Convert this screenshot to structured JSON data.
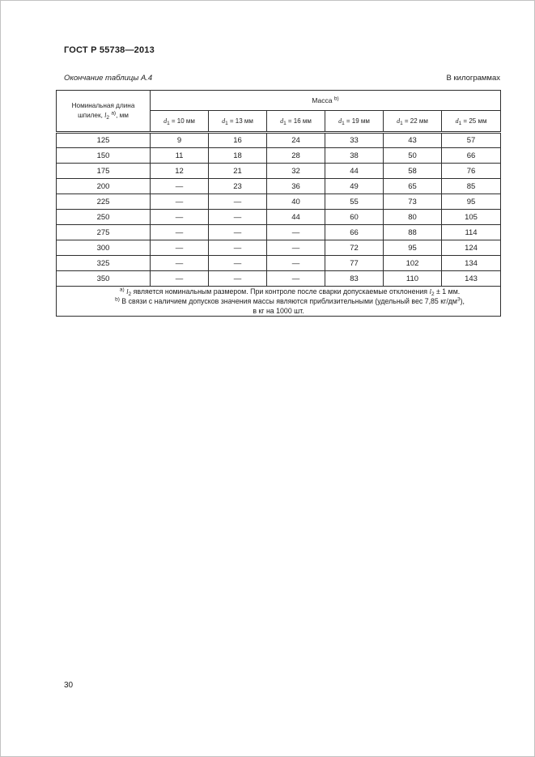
{
  "page": {
    "doc_number": "ГОСТ Р 55738—2013",
    "caption": "Окончание таблицы А.4",
    "units": "В килограммах",
    "page_number": "30"
  },
  "table": {
    "col1_header": {
      "line1": "Номинальная длина",
      "line2_prefix": "шпилек, ",
      "symbol": "l",
      "symbol_sub": "2",
      "footnote_ref": "a)",
      "line2_suffix": ", мм"
    },
    "mass_header": {
      "label": "Масса",
      "footnote_ref": "b)"
    },
    "diameter_format": {
      "symbol": "d",
      "sub": "1",
      "equals": " = ",
      "unit": " мм"
    },
    "diameters": [
      "10",
      "13",
      "16",
      "19",
      "22",
      "25"
    ],
    "rows": [
      {
        "length": "125",
        "values": [
          "9",
          "16",
          "24",
          "33",
          "43",
          "57"
        ]
      },
      {
        "length": "150",
        "values": [
          "11",
          "18",
          "28",
          "38",
          "50",
          "66"
        ]
      },
      {
        "length": "175",
        "values": [
          "12",
          "21",
          "32",
          "44",
          "58",
          "76"
        ]
      },
      {
        "length": "200",
        "values": [
          "—",
          "23",
          "36",
          "49",
          "65",
          "85"
        ]
      },
      {
        "length": "225",
        "values": [
          "—",
          "—",
          "40",
          "55",
          "73",
          "95"
        ]
      },
      {
        "length": "250",
        "values": [
          "—",
          "—",
          "44",
          "60",
          "80",
          "105"
        ]
      },
      {
        "length": "275",
        "values": [
          "—",
          "—",
          "—",
          "66",
          "88",
          "114"
        ]
      },
      {
        "length": "300",
        "values": [
          "—",
          "—",
          "—",
          "72",
          "95",
          "124"
        ]
      },
      {
        "length": "325",
        "values": [
          "—",
          "—",
          "—",
          "77",
          "102",
          "134"
        ]
      },
      {
        "length": "350",
        "values": [
          "—",
          "—",
          "—",
          "83",
          "110",
          "143"
        ]
      }
    ],
    "footnotes": {
      "a": {
        "marker": "a)",
        "symbol": "l",
        "symbol_sub": "2",
        "text1": " является номинальным размером. При контроле после сварки допускаемые отклонения ",
        "symbol2": "l",
        "symbol2_sub": "2",
        "text2": " ± 1 мм."
      },
      "b": {
        "marker": "b)",
        "text1": " В связи с наличием допусков значения массы являются приблизительными (удельный вес 7,85 кг/дм",
        "sup": "3",
        "text2": "),",
        "text3": "в кг на 1000 шт."
      }
    }
  }
}
